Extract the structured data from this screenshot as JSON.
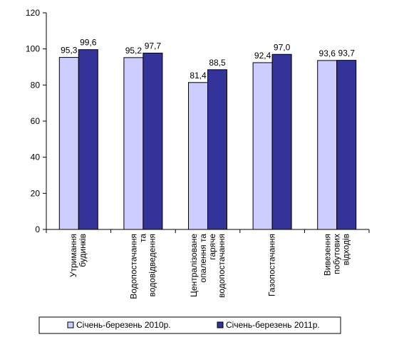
{
  "chart_data": {
    "type": "bar",
    "categories": [
      "Утримання\nбудинків",
      "Водопостачання\nта\nводовідведення",
      "Централізоване\nопалення та\nгаряче\nводопостачання",
      "Газопостачання",
      "Вивезення\nпобутових\nвідходів"
    ],
    "series": [
      {
        "name": "Січень-березень 2010р.",
        "color": "#ccccff",
        "values": [
          95.3,
          95.2,
          81.4,
          92.4,
          93.6
        ],
        "value_labels": [
          "95,3",
          "95,2",
          "81,4",
          "92,4",
          "93,6"
        ]
      },
      {
        "name": "Січень-березень 2011р.",
        "color": "#333399",
        "values": [
          99.6,
          97.7,
          88.5,
          97.0,
          93.7
        ],
        "value_labels": [
          "99,6",
          "97,7",
          "88,5",
          "97,0",
          "93,7"
        ]
      }
    ],
    "ylim": [
      0,
      120
    ],
    "yticks": [
      0,
      20,
      40,
      60,
      80,
      100,
      120
    ],
    "grid": false,
    "legend": "bottom"
  }
}
